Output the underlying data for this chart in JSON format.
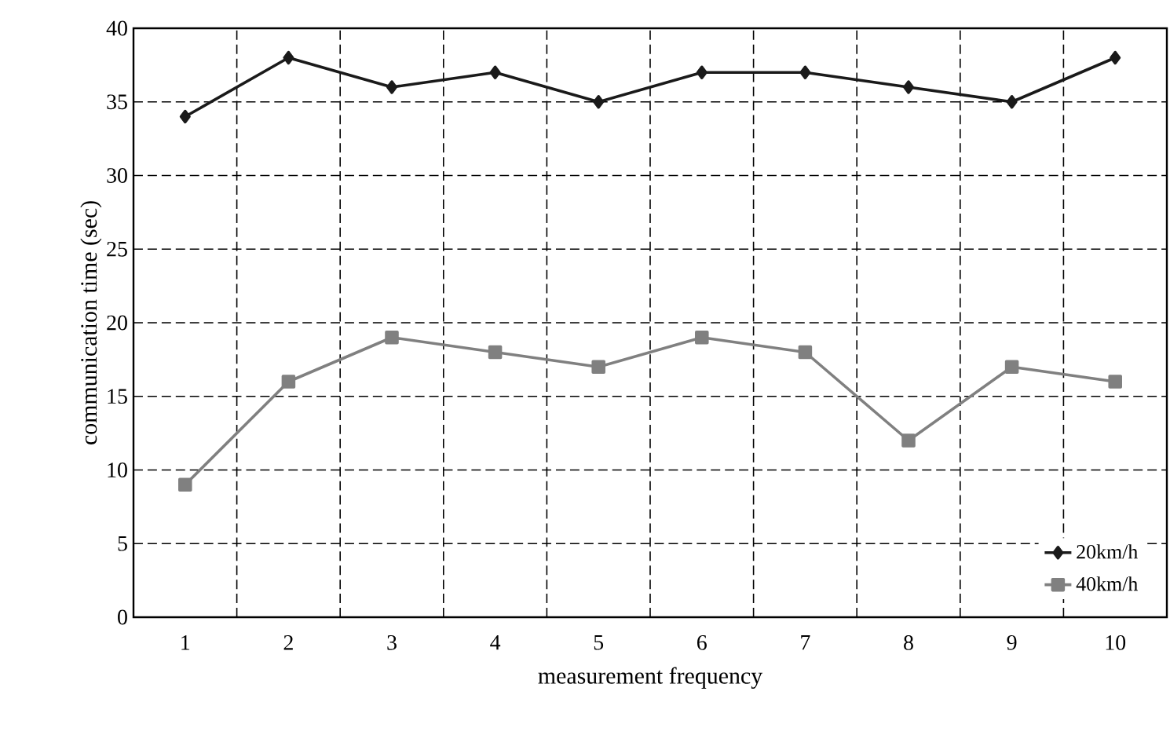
{
  "chart_data": {
    "type": "line",
    "xlabel": "measurement frequency",
    "ylabel": "communication time (sec)",
    "categories": [
      "1",
      "2",
      "3",
      "4",
      "5",
      "6",
      "7",
      "8",
      "9",
      "10"
    ],
    "series": [
      {
        "name": "20km/h",
        "color": "#1a1a1a",
        "marker": "diamond",
        "values": [
          34,
          38,
          36,
          37,
          35,
          37,
          37,
          36,
          35,
          38
        ]
      },
      {
        "name": "40km/h",
        "color": "#808080",
        "marker": "square",
        "values": [
          9,
          16,
          19,
          18,
          17,
          19,
          18,
          12,
          17,
          16
        ]
      }
    ],
    "ylim": [
      0,
      40
    ],
    "yticks": [
      0,
      5,
      10,
      15,
      20,
      25,
      30,
      35,
      40
    ],
    "grid": true,
    "legend": "bottom right",
    "line_style": "solid"
  }
}
